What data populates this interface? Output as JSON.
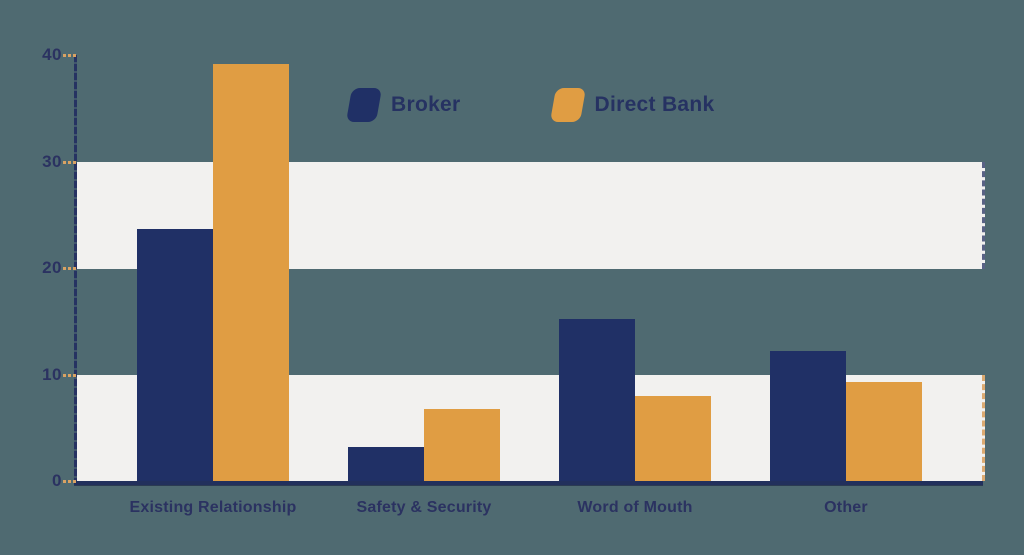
{
  "colors": {
    "background": "#4f6a71",
    "stripe_band": "#f2f1ef",
    "axis_navy": "#263262",
    "tick_orange": "#d9a263",
    "broker": "#203066",
    "direct_bank": "#e09d43",
    "label_text": "#2b3261"
  },
  "legend": {
    "broker_label": "Broker",
    "direct_bank_label": "Direct Bank"
  },
  "chart_data": {
    "type": "bar",
    "title": "",
    "xlabel": "",
    "ylabel": "",
    "categories": [
      "Existing Relationship",
      "Safety & Security",
      "Word of Mouth",
      "Other"
    ],
    "series": [
      {
        "name": "Broker",
        "color": "#203066",
        "values": [
          23.7,
          3.2,
          15.2,
          12.2
        ]
      },
      {
        "name": "Direct Bank",
        "color": "#e09d43",
        "values": [
          39.2,
          6.8,
          8.0,
          9.3
        ]
      }
    ],
    "ylim": [
      0,
      40
    ],
    "yticks": [
      0,
      10,
      20,
      30,
      40
    ],
    "grid": "horizontal white stripe bands at 0-10 and 20-30",
    "legend_position": "top-center"
  }
}
